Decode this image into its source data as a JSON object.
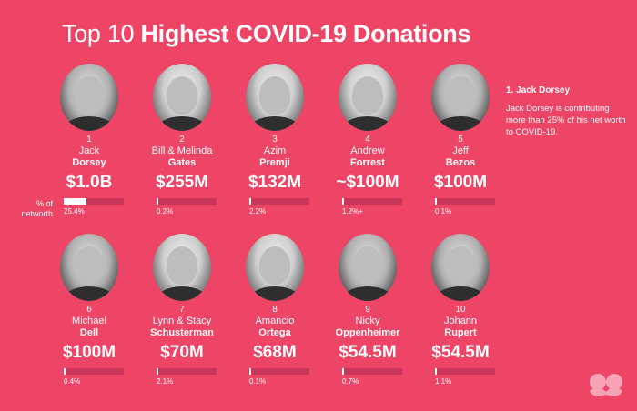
{
  "title": {
    "light": "Top 10 ",
    "bold": "Highest COVID-19 Donations"
  },
  "axis_label": "% of networth",
  "note": {
    "heading": "1. Jack Dorsey",
    "text": "Jack Dorsey is contributing more than 25% of his net worth to COVID-19."
  },
  "donors": [
    {
      "rank": "1",
      "first": "Jack",
      "last": "Dorsey",
      "amount": "$1.0B",
      "pct_label": "25.4%",
      "pct": 25.4
    },
    {
      "rank": "2",
      "first": "Bill & Melinda",
      "last": "Gates",
      "amount": "$255M",
      "pct_label": "0.2%",
      "pct": 0.2
    },
    {
      "rank": "3",
      "first": "Azim",
      "last": "Premji",
      "amount": "$132M",
      "pct_label": "2.2%",
      "pct": 2.2
    },
    {
      "rank": "4",
      "first": "Andrew",
      "last": "Forrest",
      "amount": "~$100M",
      "pct_label": "1.2%+",
      "pct": 1.2
    },
    {
      "rank": "5",
      "first": "Jeff",
      "last": "Bezos",
      "amount": "$100M",
      "pct_label": "0.1%",
      "pct": 0.1
    },
    {
      "rank": "6",
      "first": "Michael",
      "last": "Dell",
      "amount": "$100M",
      "pct_label": "0.4%",
      "pct": 0.4
    },
    {
      "rank": "7",
      "first": "Lynn & Stacy",
      "last": "Schusterman",
      "amount": "$70M",
      "pct_label": "2.1%",
      "pct": 2.1
    },
    {
      "rank": "8",
      "first": "Amancio",
      "last": "Ortega",
      "amount": "$68M",
      "pct_label": "0.1%",
      "pct": 0.1
    },
    {
      "rank": "9",
      "first": "Nicky",
      "last": "Oppenheimer",
      "amount": "$54.5M",
      "pct_label": "0.7%",
      "pct": 0.7
    },
    {
      "rank": "10",
      "first": "Johann",
      "last": "Rupert",
      "amount": "$54.5M",
      "pct_label": "1.1%",
      "pct": 1.1
    }
  ],
  "colors": {
    "background": "#ee4466",
    "bar_track": "#c9365a",
    "bar_fill": "#ffffff"
  },
  "icons": {
    "brand": "mustache-logo-icon"
  }
}
